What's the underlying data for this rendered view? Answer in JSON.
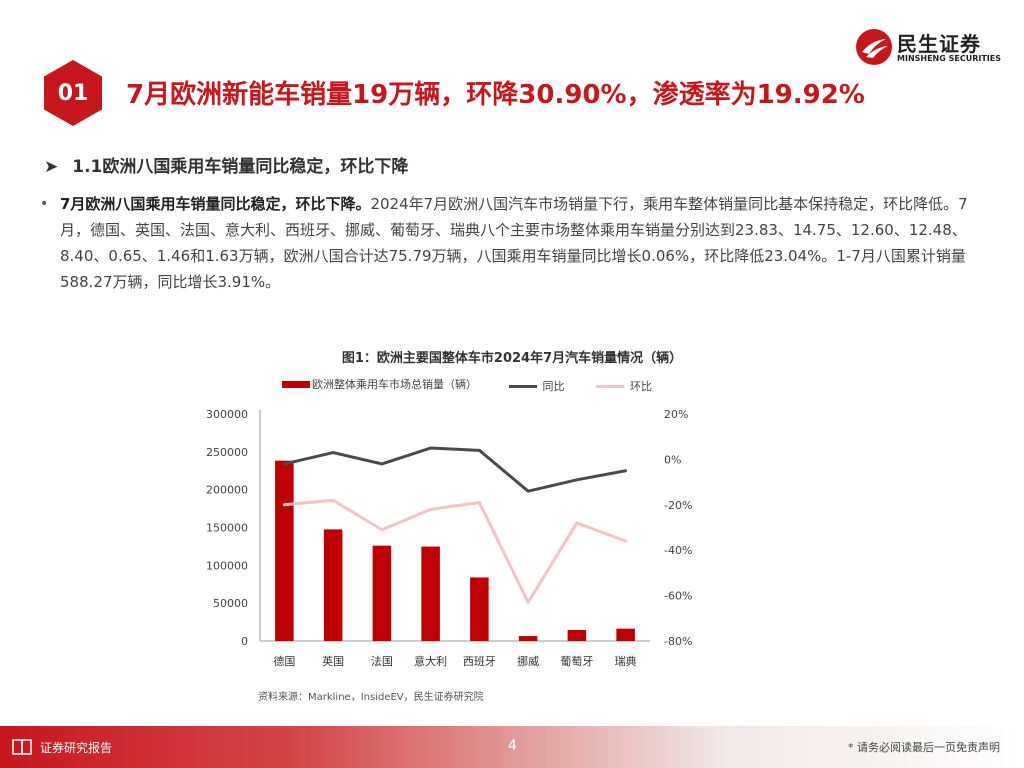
{
  "header": {
    "number": "01",
    "title": "7月欧洲新能车销量19万辆，环降30.90%，渗透率为19.92%"
  },
  "logo": {
    "cn": "民生证券",
    "en": "MINSHENG SECURITIES"
  },
  "section": {
    "heading": "1.1欧洲八国乘用车销量同比稳定，环比下降"
  },
  "paragraph": {
    "bold": "7月欧洲八国乘用车销量同比稳定，环比下降。",
    "text": "2024年7月欧洲八国汽车市场销量下行，乘用车整体销量同比基本保持稳定，环比降低。7月，德国、英国、法国、意大利、西班牙、挪威、葡萄牙、瑞典八个主要市场整体乘用车销量分别达到23.83、14.75、12.60、12.48、8.40、0.65、1.46和1.63万辆，欧洲八国合计达75.79万辆，八国乘用车销量同比增长0.06%，环比降低23.04%。1-7月八国累计销量588.27万辆，同比增长3.91%。"
  },
  "chart_data": {
    "type": "bar",
    "title": "图1：欧洲主要国整体车市2024年7月汽车销量情况（辆）",
    "categories": [
      "德国",
      "英国",
      "法国",
      "意大利",
      "西班牙",
      "挪威",
      "葡萄牙",
      "瑞典"
    ],
    "series": [
      {
        "name": "欧洲整体乘用车市场总销量（辆）",
        "type": "bar",
        "axis": "left",
        "color": "#c00000",
        "values": [
          238300,
          147500,
          126000,
          124800,
          84000,
          6500,
          14600,
          16300
        ]
      },
      {
        "name": "同比",
        "type": "line",
        "axis": "right",
        "color": "#4a4a4a",
        "values": [
          -2,
          3,
          -2,
          5,
          4,
          -14,
          -9,
          -5
        ]
      },
      {
        "name": "环比",
        "type": "line",
        "axis": "right",
        "color": "#f2c4c4",
        "values": [
          -20,
          -18,
          -31,
          -22,
          -19,
          -63,
          -28,
          -36
        ]
      }
    ],
    "left_axis": {
      "min": 0,
      "max": 300000,
      "ticks": [
        0,
        50000,
        100000,
        150000,
        200000,
        250000,
        300000
      ]
    },
    "right_axis": {
      "min": -80,
      "max": 20,
      "ticks": [
        -80,
        -60,
        -40,
        -20,
        0,
        20
      ],
      "unit": "%"
    },
    "legend_position": "top",
    "grid": false
  },
  "source": "资料来源：Markline，InsideEV，民生证券研究院",
  "footer": {
    "label": "证券研究报告",
    "page": "4",
    "disclaimer": "* 请务必阅读最后一页免责声明"
  }
}
